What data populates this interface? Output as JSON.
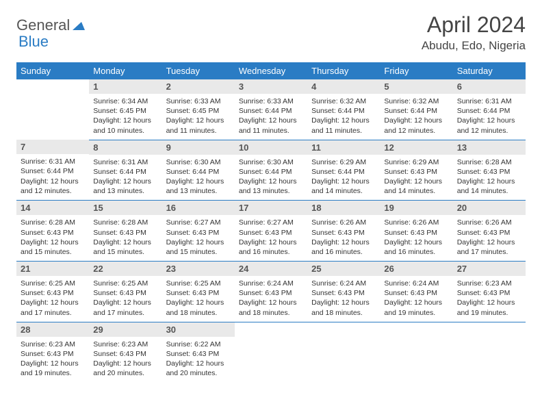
{
  "logo": {
    "part1": "General",
    "part2": "Blue"
  },
  "title": "April 2024",
  "location": "Abudu, Edo, Nigeria",
  "colors": {
    "brand_blue": "#2a7cc4",
    "header_text": "#ffffff",
    "daynum_bg": "#e9e9e9",
    "text": "#333333",
    "title_text": "#444444",
    "logo_gray": "#555555"
  },
  "typography": {
    "title_fontsize": 32,
    "location_fontsize": 17,
    "weekday_fontsize": 13,
    "daynum_fontsize": 13,
    "body_fontsize": 10.5
  },
  "weekdays": [
    "Sunday",
    "Monday",
    "Tuesday",
    "Wednesday",
    "Thursday",
    "Friday",
    "Saturday"
  ],
  "weeks": [
    [
      {
        "n": "",
        "sr": "",
        "ss": "",
        "dl": ""
      },
      {
        "n": "1",
        "sr": "6:34 AM",
        "ss": "6:45 PM",
        "dl": "12 hours and 10 minutes."
      },
      {
        "n": "2",
        "sr": "6:33 AM",
        "ss": "6:45 PM",
        "dl": "12 hours and 11 minutes."
      },
      {
        "n": "3",
        "sr": "6:33 AM",
        "ss": "6:44 PM",
        "dl": "12 hours and 11 minutes."
      },
      {
        "n": "4",
        "sr": "6:32 AM",
        "ss": "6:44 PM",
        "dl": "12 hours and 11 minutes."
      },
      {
        "n": "5",
        "sr": "6:32 AM",
        "ss": "6:44 PM",
        "dl": "12 hours and 12 minutes."
      },
      {
        "n": "6",
        "sr": "6:31 AM",
        "ss": "6:44 PM",
        "dl": "12 hours and 12 minutes."
      }
    ],
    [
      {
        "n": "7",
        "sr": "6:31 AM",
        "ss": "6:44 PM",
        "dl": "12 hours and 12 minutes."
      },
      {
        "n": "8",
        "sr": "6:31 AM",
        "ss": "6:44 PM",
        "dl": "12 hours and 13 minutes."
      },
      {
        "n": "9",
        "sr": "6:30 AM",
        "ss": "6:44 PM",
        "dl": "12 hours and 13 minutes."
      },
      {
        "n": "10",
        "sr": "6:30 AM",
        "ss": "6:44 PM",
        "dl": "12 hours and 13 minutes."
      },
      {
        "n": "11",
        "sr": "6:29 AM",
        "ss": "6:44 PM",
        "dl": "12 hours and 14 minutes."
      },
      {
        "n": "12",
        "sr": "6:29 AM",
        "ss": "6:43 PM",
        "dl": "12 hours and 14 minutes."
      },
      {
        "n": "13",
        "sr": "6:28 AM",
        "ss": "6:43 PM",
        "dl": "12 hours and 14 minutes."
      }
    ],
    [
      {
        "n": "14",
        "sr": "6:28 AM",
        "ss": "6:43 PM",
        "dl": "12 hours and 15 minutes."
      },
      {
        "n": "15",
        "sr": "6:28 AM",
        "ss": "6:43 PM",
        "dl": "12 hours and 15 minutes."
      },
      {
        "n": "16",
        "sr": "6:27 AM",
        "ss": "6:43 PM",
        "dl": "12 hours and 15 minutes."
      },
      {
        "n": "17",
        "sr": "6:27 AM",
        "ss": "6:43 PM",
        "dl": "12 hours and 16 minutes."
      },
      {
        "n": "18",
        "sr": "6:26 AM",
        "ss": "6:43 PM",
        "dl": "12 hours and 16 minutes."
      },
      {
        "n": "19",
        "sr": "6:26 AM",
        "ss": "6:43 PM",
        "dl": "12 hours and 16 minutes."
      },
      {
        "n": "20",
        "sr": "6:26 AM",
        "ss": "6:43 PM",
        "dl": "12 hours and 17 minutes."
      }
    ],
    [
      {
        "n": "21",
        "sr": "6:25 AM",
        "ss": "6:43 PM",
        "dl": "12 hours and 17 minutes."
      },
      {
        "n": "22",
        "sr": "6:25 AM",
        "ss": "6:43 PM",
        "dl": "12 hours and 17 minutes."
      },
      {
        "n": "23",
        "sr": "6:25 AM",
        "ss": "6:43 PM",
        "dl": "12 hours and 18 minutes."
      },
      {
        "n": "24",
        "sr": "6:24 AM",
        "ss": "6:43 PM",
        "dl": "12 hours and 18 minutes."
      },
      {
        "n": "25",
        "sr": "6:24 AM",
        "ss": "6:43 PM",
        "dl": "12 hours and 18 minutes."
      },
      {
        "n": "26",
        "sr": "6:24 AM",
        "ss": "6:43 PM",
        "dl": "12 hours and 19 minutes."
      },
      {
        "n": "27",
        "sr": "6:23 AM",
        "ss": "6:43 PM",
        "dl": "12 hours and 19 minutes."
      }
    ],
    [
      {
        "n": "28",
        "sr": "6:23 AM",
        "ss": "6:43 PM",
        "dl": "12 hours and 19 minutes."
      },
      {
        "n": "29",
        "sr": "6:23 AM",
        "ss": "6:43 PM",
        "dl": "12 hours and 20 minutes."
      },
      {
        "n": "30",
        "sr": "6:22 AM",
        "ss": "6:43 PM",
        "dl": "12 hours and 20 minutes."
      },
      {
        "n": "",
        "sr": "",
        "ss": "",
        "dl": ""
      },
      {
        "n": "",
        "sr": "",
        "ss": "",
        "dl": ""
      },
      {
        "n": "",
        "sr": "",
        "ss": "",
        "dl": ""
      },
      {
        "n": "",
        "sr": "",
        "ss": "",
        "dl": ""
      }
    ]
  ],
  "labels": {
    "sunrise": "Sunrise:",
    "sunset": "Sunset:",
    "daylight": "Daylight:"
  }
}
